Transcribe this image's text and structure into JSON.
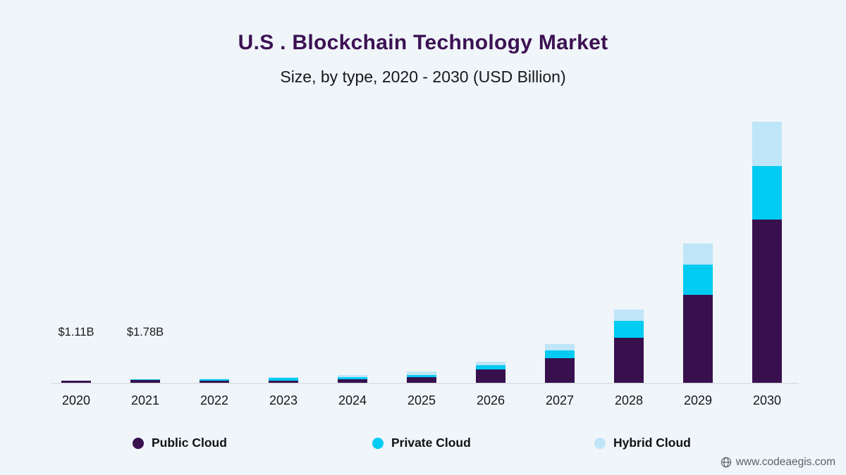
{
  "title": "U.S . Blockchain Technology Market",
  "subtitle": "Size, by type, 2020 - 2030 (USD Billion)",
  "colors": {
    "background": "#eff5f9",
    "public_cloud": "#38104e",
    "private_cloud": "#00cbf2",
    "hybrid_cloud": "#bfe5f8",
    "axis_line": "#dee3e7",
    "title_text": "#3c1153"
  },
  "legend": [
    {
      "label": "Public Cloud",
      "color": "#38104e"
    },
    {
      "label": "Private Cloud",
      "color": "#00cbf2"
    },
    {
      "label": "Hybrid Cloud",
      "color": "#bfe5f8"
    }
  ],
  "chart_data": {
    "type": "bar",
    "stacked": true,
    "title": "U.S . Blockchain Technology Market",
    "subtitle": "Size, by type, 2020 - 2030 (USD Billion)",
    "unit": "USD Billion",
    "xlabel": "",
    "ylabel": "",
    "y_axis_shown": false,
    "grid": false,
    "legend_position": "bottom",
    "ylim": [
      0,
      160
    ],
    "categories": [
      "2020",
      "2021",
      "2022",
      "2023",
      "2024",
      "2025",
      "2026",
      "2027",
      "2028",
      "2029",
      "2030"
    ],
    "series": [
      {
        "name": "Public Cloud",
        "color": "#38104e",
        "values": [
          1.0,
          1.55,
          1.0,
          1.2,
          2.0,
          3.1,
          7.6,
          14.0,
          25.6,
          50.0,
          92.8
        ]
      },
      {
        "name": "Private Cloud",
        "color": "#00cbf2",
        "values": [
          0.07,
          0.15,
          0.8,
          1.4,
          1.2,
          1.2,
          2.4,
          4.4,
          9.6,
          17.2,
          30.4
        ]
      },
      {
        "name": "Hybrid Cloud",
        "color": "#bfe5f8",
        "values": [
          0.04,
          0.08,
          0.3,
          0.4,
          1.0,
          2.0,
          2.0,
          3.6,
          6.4,
          12.0,
          25.2
        ]
      }
    ],
    "totals": [
      1.11,
      1.78,
      2.1,
      3.0,
      4.2,
      6.3,
      12.0,
      22.0,
      41.6,
      79.2,
      148.4
    ],
    "value_labels": [
      "$1.11B",
      "$1.78B",
      "",
      "",
      "",
      "",
      "",
      "",
      "",
      "",
      ""
    ]
  },
  "watermark": {
    "icon": "globe-icon",
    "text": "www.codeaegis.com"
  }
}
